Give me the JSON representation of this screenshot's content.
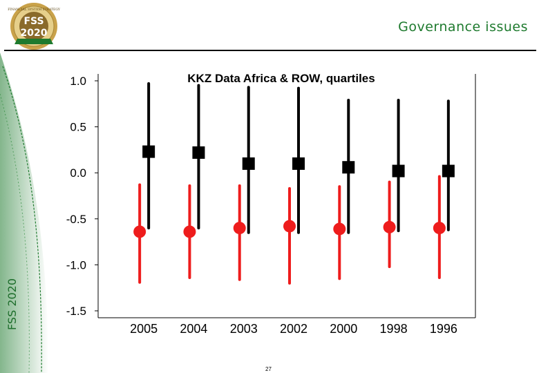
{
  "slide": {
    "title": "Governance issues",
    "side_label": "FSS 2020",
    "page_number": "27",
    "logo": {
      "top_text": "FINANCIAL SYSTEM STRATEGY",
      "main_text": "FSS",
      "year_text": "2020"
    },
    "colors": {
      "green": "#1e7a2e",
      "gold": "#c9a24a",
      "black": "#000000",
      "red": "#ee1c1c"
    }
  },
  "chart_data": {
    "type": "scatter",
    "title": "KKZ Data Africa & ROW, quartiles",
    "xlabel": "",
    "ylabel": "",
    "categories": [
      "2005",
      "2004",
      "2003",
      "2002",
      "2000",
      "1998",
      "1996"
    ],
    "ylim": [
      -1.5,
      1.0
    ],
    "yticks": [
      1.0,
      0.5,
      0.0,
      -0.5,
      -1.0,
      -1.5
    ],
    "ytick_labels": [
      "1.0",
      "0.5",
      "0.0",
      "-0.5",
      "-1.0",
      "-1.5"
    ],
    "series": [
      {
        "name": "ROW",
        "color": "#000000",
        "marker": "square",
        "low": [
          -0.6,
          -0.6,
          -0.65,
          -0.65,
          -0.65,
          -0.63,
          -0.62
        ],
        "high": [
          0.97,
          0.95,
          0.93,
          0.92,
          0.79,
          0.79,
          0.78
        ],
        "median": [
          0.23,
          0.22,
          0.1,
          0.1,
          0.06,
          0.02,
          0.02
        ]
      },
      {
        "name": "Africa",
        "color": "#ee1c1c",
        "marker": "circle",
        "low": [
          -1.19,
          -1.14,
          -1.16,
          -1.2,
          -1.15,
          -1.02,
          -1.14
        ],
        "high": [
          -0.13,
          -0.14,
          -0.14,
          -0.17,
          -0.15,
          -0.1,
          -0.04
        ],
        "median": [
          -0.64,
          -0.64,
          -0.6,
          -0.58,
          -0.61,
          -0.59,
          -0.6
        ]
      }
    ]
  }
}
